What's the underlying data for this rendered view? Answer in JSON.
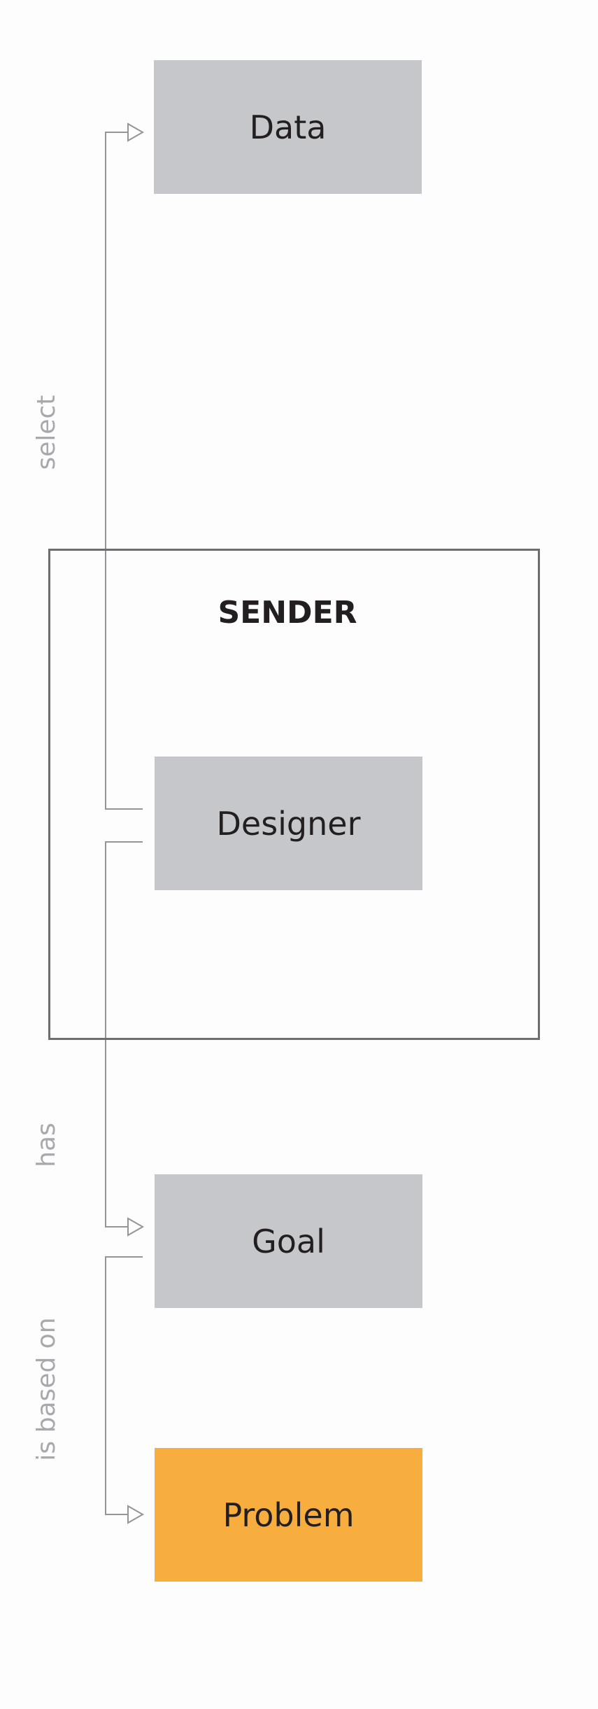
{
  "nodes": {
    "data": {
      "label": "Data",
      "color": "#c6c7ca"
    },
    "designer": {
      "label": "Designer",
      "color": "#c6c7ca"
    },
    "goal": {
      "label": "Goal",
      "color": "#c6c7ca"
    },
    "problem": {
      "label": "Problem",
      "color": "#f8ae3e"
    }
  },
  "group": {
    "title": "SENDER",
    "border_color": "#6d6e71"
  },
  "edges": {
    "select": "select",
    "has": "has",
    "based_on": "is based on",
    "line_color": "#939598"
  }
}
